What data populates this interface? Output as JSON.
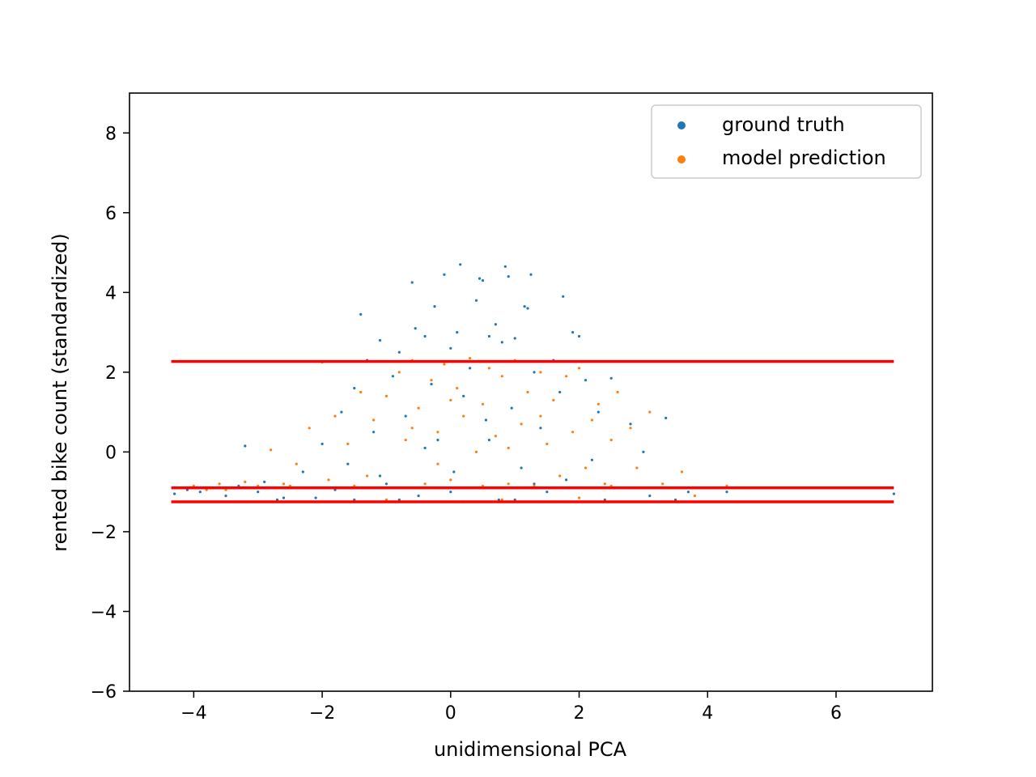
{
  "chart_data": {
    "type": "scatter",
    "title": "",
    "xlabel": "unidimensional PCA",
    "ylabel": "rented bike count (standardized)",
    "xlim": [
      -5.0,
      7.5
    ],
    "ylim": [
      -6,
      9
    ],
    "xticks": [
      -4,
      -2,
      0,
      2,
      4,
      6
    ],
    "yticks": [
      -6,
      -4,
      -2,
      0,
      2,
      4,
      6,
      8
    ],
    "grid": false,
    "legend_position": "upper right",
    "series": [
      {
        "name": "ground truth",
        "color": "#1f77b4",
        "points": [
          [
            -4.3,
            -1.05
          ],
          [
            -4.1,
            -0.95
          ],
          [
            -3.9,
            -1.0
          ],
          [
            -3.7,
            -0.9
          ],
          [
            -3.5,
            -1.1
          ],
          [
            -3.3,
            -0.85
          ],
          [
            -3.2,
            0.15
          ],
          [
            -3.0,
            -1.0
          ],
          [
            -2.9,
            -0.75
          ],
          [
            -2.7,
            -1.2
          ],
          [
            -2.5,
            -0.9
          ],
          [
            -2.3,
            -0.5
          ],
          [
            -2.1,
            -1.15
          ],
          [
            -2.0,
            0.2
          ],
          [
            -1.8,
            -0.95
          ],
          [
            -1.7,
            1.0
          ],
          [
            -1.6,
            -0.3
          ],
          [
            -1.5,
            1.6
          ],
          [
            -1.4,
            3.45
          ],
          [
            -1.3,
            2.3
          ],
          [
            -1.2,
            0.5
          ],
          [
            -1.1,
            2.8
          ],
          [
            -1.0,
            -0.8
          ],
          [
            -0.9,
            1.9
          ],
          [
            -0.8,
            2.5
          ],
          [
            -0.7,
            0.9
          ],
          [
            -0.6,
            4.25
          ],
          [
            -0.55,
            3.1
          ],
          [
            -0.5,
            -1.1
          ],
          [
            -0.4,
            2.9
          ],
          [
            -0.3,
            1.7
          ],
          [
            -0.25,
            3.65
          ],
          [
            -0.2,
            0.3
          ],
          [
            -0.1,
            4.45
          ],
          [
            0.0,
            2.6
          ],
          [
            0.05,
            -0.5
          ],
          [
            0.1,
            3.0
          ],
          [
            0.15,
            4.7
          ],
          [
            0.2,
            1.4
          ],
          [
            0.3,
            2.1
          ],
          [
            0.35,
            -0.9
          ],
          [
            0.4,
            3.8
          ],
          [
            0.45,
            4.35
          ],
          [
            0.5,
            4.3
          ],
          [
            0.55,
            0.8
          ],
          [
            0.6,
            2.9
          ],
          [
            0.7,
            3.2
          ],
          [
            0.75,
            -1.2
          ],
          [
            0.8,
            2.75
          ],
          [
            0.85,
            4.65
          ],
          [
            0.9,
            4.4
          ],
          [
            0.95,
            1.1
          ],
          [
            1.0,
            2.85
          ],
          [
            1.1,
            -0.4
          ],
          [
            1.15,
            3.65
          ],
          [
            1.2,
            3.6
          ],
          [
            1.25,
            4.45
          ],
          [
            1.3,
            2.0
          ],
          [
            1.4,
            0.6
          ],
          [
            1.5,
            -1.0
          ],
          [
            1.6,
            2.3
          ],
          [
            1.7,
            1.5
          ],
          [
            1.75,
            3.9
          ],
          [
            1.8,
            -0.7
          ],
          [
            1.9,
            3.0
          ],
          [
            2.0,
            2.9
          ],
          [
            2.1,
            1.8
          ],
          [
            2.2,
            -0.2
          ],
          [
            2.3,
            1.0
          ],
          [
            2.5,
            1.85
          ],
          [
            2.6,
            -0.9
          ],
          [
            2.8,
            0.7
          ],
          [
            3.0,
            0.0
          ],
          [
            3.1,
            -1.1
          ],
          [
            3.35,
            0.85
          ],
          [
            3.5,
            -1.2
          ],
          [
            3.7,
            -1.0
          ],
          [
            4.3,
            -1.0
          ],
          [
            6.9,
            -1.05
          ],
          [
            -0.8,
            -1.2
          ],
          [
            0.2,
            -1.25
          ],
          [
            1.0,
            -1.2
          ],
          [
            -1.5,
            -1.2
          ],
          [
            2.4,
            -1.2
          ],
          [
            -2.6,
            -1.15
          ],
          [
            0.6,
            0.3
          ],
          [
            -0.4,
            0.1
          ],
          [
            1.3,
            -0.8
          ],
          [
            -1.1,
            -0.6
          ],
          [
            0.0,
            -1.0
          ]
        ]
      },
      {
        "name": "model prediction",
        "color": "#ff7f0e",
        "points": [
          [
            -4.3,
            -0.9
          ],
          [
            -4.0,
            -0.85
          ],
          [
            -3.8,
            -0.95
          ],
          [
            -3.6,
            -0.8
          ],
          [
            -3.4,
            -0.9
          ],
          [
            -3.2,
            -0.75
          ],
          [
            -3.0,
            -0.85
          ],
          [
            -2.8,
            0.05
          ],
          [
            -2.6,
            -0.8
          ],
          [
            -2.4,
            -0.3
          ],
          [
            -2.2,
            0.6
          ],
          [
            -2.0,
            2.25
          ],
          [
            -1.9,
            -0.7
          ],
          [
            -1.8,
            0.9
          ],
          [
            -1.6,
            0.2
          ],
          [
            -1.4,
            1.5
          ],
          [
            -1.3,
            -0.6
          ],
          [
            -1.2,
            0.8
          ],
          [
            -1.0,
            1.4
          ],
          [
            -0.9,
            -0.9
          ],
          [
            -0.8,
            2.0
          ],
          [
            -0.7,
            0.3
          ],
          [
            -0.6,
            2.3
          ],
          [
            -0.5,
            1.1
          ],
          [
            -0.4,
            -0.8
          ],
          [
            -0.3,
            1.8
          ],
          [
            -0.2,
            0.5
          ],
          [
            -0.1,
            2.2
          ],
          [
            0.0,
            -0.7
          ],
          [
            0.1,
            1.6
          ],
          [
            0.2,
            0.9
          ],
          [
            0.3,
            2.35
          ],
          [
            0.4,
            -0.9
          ],
          [
            0.5,
            1.2
          ],
          [
            0.6,
            2.1
          ],
          [
            0.7,
            0.4
          ],
          [
            0.8,
            1.9
          ],
          [
            0.9,
            -0.8
          ],
          [
            1.0,
            2.3
          ],
          [
            1.1,
            0.7
          ],
          [
            1.2,
            1.5
          ],
          [
            1.3,
            -0.85
          ],
          [
            1.4,
            2.0
          ],
          [
            1.5,
            0.2
          ],
          [
            1.6,
            1.3
          ],
          [
            1.7,
            -0.6
          ],
          [
            1.8,
            1.9
          ],
          [
            1.9,
            0.5
          ],
          [
            2.0,
            2.1
          ],
          [
            2.1,
            -0.4
          ],
          [
            2.2,
            0.8
          ],
          [
            2.3,
            1.2
          ],
          [
            2.4,
            -0.8
          ],
          [
            2.5,
            0.3
          ],
          [
            2.6,
            1.5
          ],
          [
            2.7,
            -0.9
          ],
          [
            2.8,
            0.6
          ],
          [
            2.9,
            -0.4
          ],
          [
            3.1,
            1.0
          ],
          [
            3.3,
            -0.8
          ],
          [
            3.5,
            -0.9
          ],
          [
            3.6,
            -0.5
          ],
          [
            3.8,
            -1.1
          ],
          [
            4.3,
            -0.85
          ],
          [
            -2.5,
            -0.85
          ],
          [
            -1.5,
            -0.85
          ],
          [
            -0.5,
            -0.9
          ],
          [
            0.5,
            -0.85
          ],
          [
            1.5,
            -0.9
          ],
          [
            2.5,
            -0.85
          ],
          [
            -3.5,
            -0.95
          ],
          [
            0.8,
            -1.2
          ],
          [
            -1.0,
            -1.2
          ],
          [
            2.0,
            -1.15
          ],
          [
            0.0,
            1.3
          ],
          [
            0.9,
            0.1
          ],
          [
            -0.6,
            0.6
          ],
          [
            1.4,
            0.9
          ],
          [
            -0.2,
            -0.3
          ],
          [
            0.4,
            0.0
          ]
        ]
      }
    ],
    "hlines": [
      {
        "y": 2.27,
        "x_start": -4.35,
        "x_end": 6.9,
        "color": "#ff0000"
      },
      {
        "y": -0.9,
        "x_start": -4.35,
        "x_end": 6.9,
        "color": "#ff0000"
      },
      {
        "y": -1.25,
        "x_start": -4.35,
        "x_end": 6.9,
        "color": "#ff0000"
      }
    ]
  }
}
